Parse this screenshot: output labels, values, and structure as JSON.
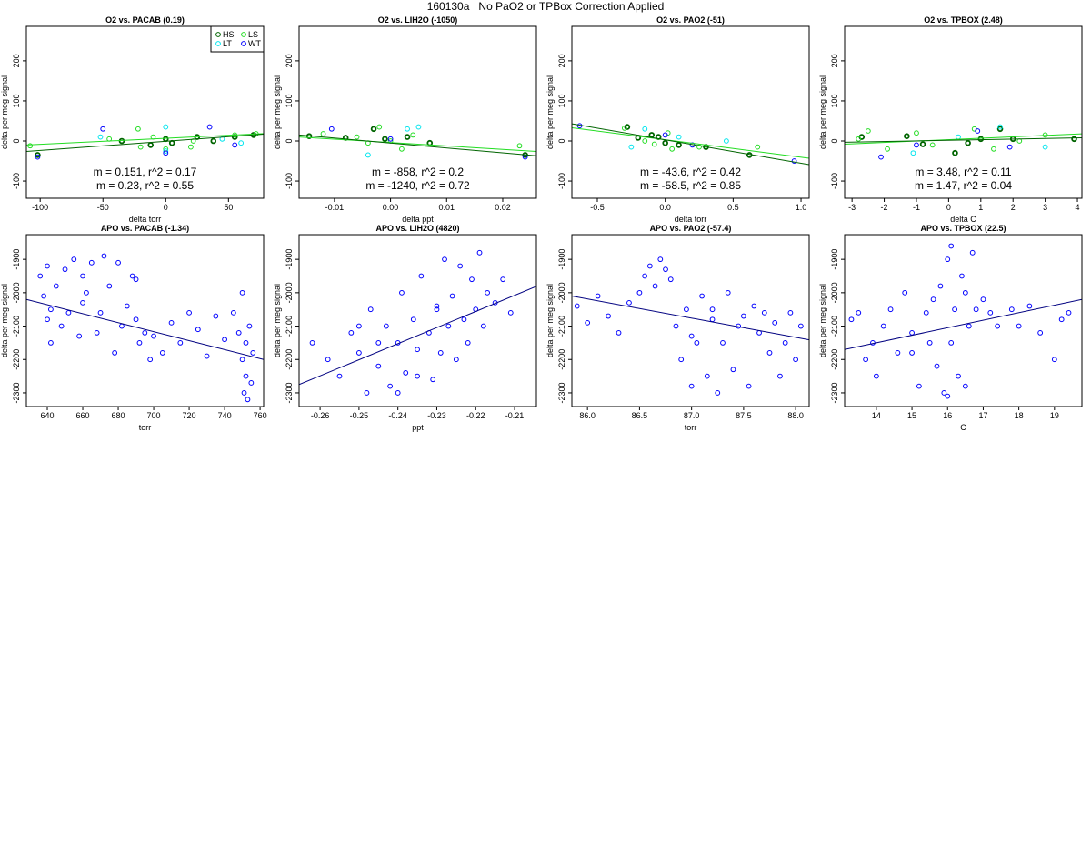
{
  "title": "160130a   No PaO2 or TPBox Correction Applied",
  "chart_data": [
    {
      "type": "scatter",
      "title": "O2 vs. PACAB (0.19)",
      "xlabel": "delta torr",
      "ylabel": "delta per meg signal",
      "xlim": [
        -111,
        78
      ],
      "ylim": [
        -143,
        286
      ],
      "xticks": [
        -100,
        -50,
        0,
        50
      ],
      "yticks": [
        -100,
        0,
        100,
        200
      ],
      "legend": "topright",
      "series": [
        {
          "name": "HS",
          "color": "#006400",
          "x": [
            -102,
            -35,
            -12,
            0,
            5,
            25,
            38,
            55,
            70
          ],
          "values": [
            -35,
            0,
            -10,
            5,
            -5,
            10,
            0,
            10,
            15
          ]
        },
        {
          "name": "LS",
          "color": "#22dd22",
          "x": [
            -108,
            -45,
            -22,
            -20,
            -10,
            0,
            20,
            22,
            55,
            72
          ],
          "values": [
            -12,
            5,
            30,
            -15,
            10,
            -20,
            -15,
            0,
            15,
            18
          ]
        },
        {
          "name": "LT",
          "color": "#00e5ee",
          "x": [
            -52,
            0,
            0,
            45,
            60
          ],
          "values": [
            10,
            35,
            -25,
            5,
            -5
          ]
        },
        {
          "name": "WT",
          "color": "#0000ff",
          "x": [
            -102,
            -50,
            0,
            35,
            55
          ],
          "values": [
            -40,
            30,
            -30,
            35,
            -10
          ]
        }
      ],
      "fits": [
        {
          "color": "#22dd22",
          "x": [
            -111,
            78
          ],
          "values": [
            -10,
            18.5
          ],
          "label": "m = 0.151, r^2 = 0.17"
        },
        {
          "color": "#006400",
          "x": [
            -111,
            78
          ],
          "values": [
            -26,
            17
          ],
          "label": "m = 0.23, r^2 = 0.55"
        }
      ]
    },
    {
      "type": "scatter",
      "title": "O2 vs. LIH2O (-1050)",
      "xlabel": "delta ppt",
      "ylabel": "delta per meg signal",
      "xlim": [
        -0.0163,
        0.026
      ],
      "ylim": [
        -143,
        286
      ],
      "xticks": [
        -0.01,
        {
          "value": 0,
          "label": "0.00"
        },
        0.01,
        0.02
      ],
      "yticks": [
        -100,
        0,
        100,
        200
      ],
      "series": [
        {
          "color": "#006400",
          "x": [
            -0.0145,
            -0.008,
            -0.003,
            -0.001,
            0.003,
            0.007,
            0.024
          ],
          "values": [
            12,
            8,
            30,
            5,
            10,
            -5,
            -35
          ]
        },
        {
          "color": "#22dd22",
          "x": [
            -0.012,
            -0.006,
            -0.004,
            -0.002,
            0.0,
            0.002,
            0.004,
            0.023
          ],
          "values": [
            18,
            10,
            -5,
            35,
            0,
            -20,
            15,
            -12
          ]
        },
        {
          "color": "#00e5ee",
          "x": [
            -0.004,
            0.003,
            0.005
          ],
          "values": [
            -35,
            30,
            35
          ]
        },
        {
          "color": "#0000ff",
          "x": [
            -0.0105,
            0.0,
            0.024
          ],
          "values": [
            30,
            5,
            -40
          ]
        }
      ],
      "fits": [
        {
          "color": "#22dd22",
          "x": [
            -0.0163,
            0.026
          ],
          "values": [
            10,
            -26
          ],
          "label": "m = -858, r^2 = 0.2"
        },
        {
          "color": "#006400",
          "x": [
            -0.0163,
            0.026
          ],
          "values": [
            15,
            -37
          ],
          "label": "m = -1240, r^2 = 0.72"
        }
      ]
    },
    {
      "type": "scatter",
      "title": "O2 vs. PAO2 (-51)",
      "xlabel": "delta torr",
      "ylabel": "delta per meg signal",
      "xlim": [
        -0.6875,
        1.06
      ],
      "ylim": [
        -143,
        286
      ],
      "xticks": [
        -0.5,
        {
          "value": 0,
          "label": "0.0"
        },
        0.5,
        {
          "value": 1,
          "label": "1.0"
        }
      ],
      "yticks": [
        -100,
        0,
        100,
        200
      ],
      "series": [
        {
          "color": "#006400",
          "x": [
            -0.28,
            -0.2,
            -0.1,
            -0.05,
            0,
            0.1,
            0.3,
            0.62
          ],
          "values": [
            35,
            8,
            15,
            10,
            -5,
            -10,
            -15,
            -35
          ]
        },
        {
          "color": "#22dd22",
          "x": [
            -0.3,
            -0.15,
            -0.08,
            0.02,
            0.05,
            0.25,
            0.68
          ],
          "values": [
            32,
            0,
            -8,
            20,
            -20,
            -15,
            -15
          ]
        },
        {
          "color": "#00e5ee",
          "x": [
            -0.25,
            -0.15,
            0.1,
            0.45
          ],
          "values": [
            -15,
            30,
            10,
            0
          ]
        },
        {
          "color": "#0000ff",
          "x": [
            -0.63,
            0.0,
            0.2,
            0.95
          ],
          "values": [
            38,
            15,
            -10,
            -50
          ]
        }
      ],
      "fits": [
        {
          "color": "#22dd22",
          "x": [
            -0.6875,
            1.06
          ],
          "values": [
            33,
            -43
          ],
          "label": "m = -43.6, r^2 = 0.42"
        },
        {
          "color": "#006400",
          "x": [
            -0.6875,
            1.06
          ],
          "values": [
            43,
            -59
          ],
          "label": "m = -58.5, r^2 = 0.85"
        }
      ]
    },
    {
      "type": "scatter",
      "title": "O2 vs. TPBOX (2.48)",
      "xlabel": "delta C",
      "ylabel": "delta per meg signal",
      "xlim": [
        -3.23,
        4.14
      ],
      "ylim": [
        -143,
        286
      ],
      "xticks": [
        -3,
        -2,
        -1,
        0,
        1,
        2,
        3,
        4
      ],
      "yticks": [
        -100,
        0,
        100,
        200
      ],
      "series": [
        {
          "color": "#006400",
          "x": [
            -2.7,
            -1.3,
            -0.8,
            0.2,
            0.6,
            1.0,
            1.6,
            2.0,
            3.9
          ],
          "values": [
            10,
            12,
            -8,
            -30,
            -5,
            5,
            30,
            5,
            5
          ]
        },
        {
          "color": "#22dd22",
          "x": [
            -2.8,
            -2.5,
            -1.9,
            -1.0,
            -0.5,
            0.8,
            1.4,
            2.2,
            3.0
          ],
          "values": [
            5,
            25,
            -20,
            20,
            -10,
            30,
            -20,
            0,
            15
          ]
        },
        {
          "color": "#00e5ee",
          "x": [
            -1.1,
            0.3,
            1.6,
            3.0
          ],
          "values": [
            -30,
            10,
            35,
            -15
          ]
        },
        {
          "color": "#0000ff",
          "x": [
            -2.1,
            -1.0,
            0.9,
            1.9
          ],
          "values": [
            -40,
            -10,
            25,
            -15
          ]
        }
      ],
      "fits": [
        {
          "color": "#22dd22",
          "x": [
            -3.23,
            4.14
          ],
          "values": [
            -8,
            18
          ],
          "label": "m = 3.48, r^2 = 0.11"
        },
        {
          "color": "#006400",
          "x": [
            -3.23,
            4.14
          ],
          "values": [
            -3,
            8
          ],
          "label": "m = 1.47, r^2 = 0.04"
        }
      ]
    },
    {
      "type": "scatter",
      "title": "APO vs. PACAB (-1.34)",
      "xlabel": "torr",
      "ylabel": "delta per meg signal",
      "xlim": [
        628.2,
        762
      ],
      "ylim": [
        -2341,
        -1826
      ],
      "xticks": [
        640,
        660,
        680,
        700,
        720,
        740,
        760
      ],
      "yticks": [
        -2300,
        -2200,
        -2100,
        -2000,
        -1900
      ],
      "series": [
        {
          "color": "#0000ff",
          "x": [
            636,
            638,
            640,
            642,
            645,
            648,
            650,
            652,
            655,
            658,
            660,
            662,
            665,
            668,
            670,
            672,
            675,
            678,
            680,
            682,
            685,
            688,
            690,
            690,
            692,
            695,
            698,
            700,
            705,
            710,
            715,
            720,
            725,
            730,
            735,
            740,
            745,
            748,
            750,
            750,
            751,
            752,
            752,
            753,
            754,
            755,
            756,
            640,
            642,
            660
          ],
          "values": [
            -1950,
            -2010,
            -1920,
            -2050,
            -1980,
            -2100,
            -1930,
            -2060,
            -1900,
            -2130,
            -1950,
            -2000,
            -1910,
            -2120,
            -2060,
            -1890,
            -1980,
            -2180,
            -1910,
            -2100,
            -2040,
            -1950,
            -1960,
            -2080,
            -2150,
            -2120,
            -2200,
            -2130,
            -2180,
            -2090,
            -2150,
            -2060,
            -2110,
            -2190,
            -2070,
            -2140,
            -2060,
            -2120,
            -2000,
            -2200,
            -2300,
            -2250,
            -2150,
            -2320,
            -2100,
            -2270,
            -2180,
            -2080,
            -2150,
            -2030
          ]
        }
      ],
      "fits": [
        {
          "color": "#000080",
          "x": [
            628.2,
            762
          ],
          "values": [
            -2020,
            -2200
          ]
        }
      ]
    },
    {
      "type": "scatter",
      "title": "APO vs. LIH2O (4820)",
      "xlabel": "ppt",
      "ylabel": "delta per meg signal",
      "xlim": [
        -0.2654,
        -0.2044
      ],
      "ylim": [
        -2341,
        -1826
      ],
      "xticks": [
        -0.26,
        -0.25,
        -0.24,
        -0.23,
        -0.22,
        -0.21
      ],
      "yticks": [
        -2300,
        -2200,
        -2100,
        -2000,
        -1900
      ],
      "series": [
        {
          "color": "#0000ff",
          "x": [
            -0.262,
            -0.258,
            -0.255,
            -0.252,
            -0.25,
            -0.248,
            -0.247,
            -0.245,
            -0.243,
            -0.242,
            -0.24,
            -0.239,
            -0.238,
            -0.236,
            -0.235,
            -0.234,
            -0.232,
            -0.231,
            -0.23,
            -0.229,
            -0.228,
            -0.227,
            -0.226,
            -0.225,
            -0.224,
            -0.223,
            -0.222,
            -0.221,
            -0.22,
            -0.219,
            -0.218,
            -0.217,
            -0.215,
            -0.213,
            -0.211,
            -0.25,
            -0.245,
            -0.24,
            -0.235,
            -0.23
          ],
          "values": [
            -2150,
            -2200,
            -2250,
            -2120,
            -2180,
            -2300,
            -2050,
            -2220,
            -2100,
            -2280,
            -2150,
            -2000,
            -2240,
            -2080,
            -2170,
            -1950,
            -2120,
            -2260,
            -2040,
            -2180,
            -1900,
            -2100,
            -2010,
            -2200,
            -1920,
            -2080,
            -2150,
            -1960,
            -2050,
            -1880,
            -2100,
            -2000,
            -2030,
            -1960,
            -2060,
            -2100,
            -2150,
            -2300,
            -2250,
            -2050
          ]
        }
      ],
      "fits": [
        {
          "color": "#000080",
          "x": [
            -0.2654,
            -0.2044
          ],
          "values": [
            -2275,
            -1981
          ]
        }
      ]
    },
    {
      "type": "scatter",
      "title": "APO vs. PAO2 (-57.4)",
      "xlabel": "torr",
      "ylabel": "delta per meg signal",
      "xlim": [
        85.85,
        88.13
      ],
      "ylim": [
        -2341,
        -1826
      ],
      "xticks": [
        {
          "value": 86,
          "label": "86.0"
        },
        86.5,
        {
          "value": 87,
          "label": "87.0"
        },
        87.5,
        {
          "value": 88,
          "label": "88.0"
        }
      ],
      "yticks": [
        -2300,
        -2200,
        -2100,
        -2000,
        -1900
      ],
      "series": [
        {
          "color": "#0000ff",
          "x": [
            85.9,
            86.0,
            86.1,
            86.2,
            86.3,
            86.4,
            86.5,
            86.55,
            86.6,
            86.65,
            86.7,
            86.75,
            86.8,
            86.85,
            86.9,
            86.95,
            87.0,
            87.05,
            87.1,
            87.15,
            87.2,
            87.25,
            87.3,
            87.35,
            87.4,
            87.45,
            87.5,
            87.55,
            87.6,
            87.65,
            87.7,
            87.75,
            87.8,
            87.85,
            87.9,
            87.95,
            88.0,
            88.05,
            87.0,
            87.2
          ],
          "values": [
            -2040,
            -2090,
            -2010,
            -2070,
            -2120,
            -2030,
            -2000,
            -1950,
            -1920,
            -1980,
            -1900,
            -1930,
            -1960,
            -2100,
            -2200,
            -2050,
            -2280,
            -2150,
            -2010,
            -2250,
            -2080,
            -2300,
            -2150,
            -2000,
            -2230,
            -2100,
            -2070,
            -2280,
            -2040,
            -2120,
            -2060,
            -2180,
            -2090,
            -2250,
            -2150,
            -2060,
            -2200,
            -2100,
            -2130,
            -2050
          ]
        }
      ],
      "fits": [
        {
          "color": "#000080",
          "x": [
            85.85,
            88.13
          ],
          "values": [
            -2010,
            -2141
          ]
        }
      ]
    },
    {
      "type": "scatter",
      "title": "APO vs. TPBOX (22.5)",
      "xlabel": "C",
      "ylabel": "delta per meg signal",
      "xlim": [
        13.11,
        19.77
      ],
      "ylim": [
        -2341,
        -1826
      ],
      "xticks": [
        14,
        15,
        16,
        17,
        18,
        19
      ],
      "yticks": [
        -2300,
        -2200,
        -2100,
        -2000,
        -1900
      ],
      "series": [
        {
          "color": "#0000ff",
          "x": [
            13.3,
            13.5,
            13.7,
            13.9,
            14.0,
            14.2,
            14.4,
            14.6,
            14.8,
            15.0,
            15.2,
            15.4,
            15.5,
            15.6,
            15.7,
            15.8,
            15.9,
            16.0,
            16.0,
            16.1,
            16.1,
            16.2,
            16.3,
            16.4,
            16.5,
            16.6,
            16.7,
            16.8,
            17.0,
            17.2,
            17.4,
            17.8,
            18.0,
            18.3,
            18.6,
            19.0,
            19.2,
            19.4,
            15.0,
            16.5
          ],
          "values": [
            -2080,
            -2060,
            -2200,
            -2150,
            -2250,
            -2100,
            -2050,
            -2180,
            -2000,
            -2120,
            -2280,
            -2060,
            -2150,
            -2020,
            -2220,
            -1980,
            -2300,
            -1900,
            -2310,
            -1860,
            -2150,
            -2050,
            -2250,
            -1950,
            -2000,
            -2100,
            -1880,
            -2050,
            -2020,
            -2060,
            -2100,
            -2050,
            -2100,
            -2040,
            -2120,
            -2200,
            -2080,
            -2060,
            -2180,
            -2280
          ]
        }
      ],
      "fits": [
        {
          "color": "#000080",
          "x": [
            13.11,
            19.77
          ],
          "values": [
            -2170,
            -2020
          ]
        }
      ]
    }
  ]
}
